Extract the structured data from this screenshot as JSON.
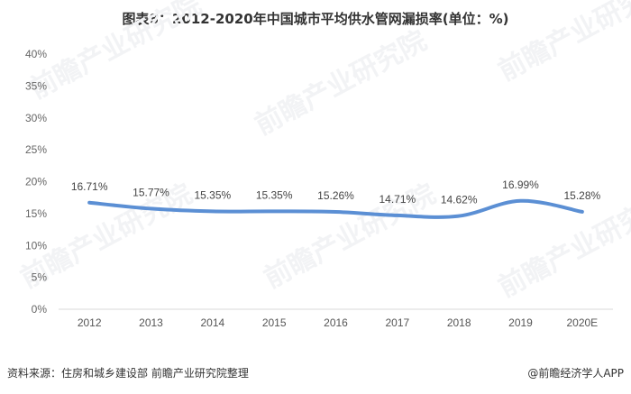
{
  "title": "图表8：2012-2020年中国城市平均供水管网漏损率(单位：%)",
  "chart_data": {
    "type": "line",
    "title": "图表8：2012-2020年中国城市平均供水管网漏损率(单位：%)",
    "categories": [
      "2012",
      "2013",
      "2014",
      "2015",
      "2016",
      "2017",
      "2018",
      "2019",
      "2020E"
    ],
    "series": [
      {
        "name": "城市平均供水管网漏损率",
        "values": [
          16.71,
          15.77,
          15.35,
          15.35,
          15.26,
          14.71,
          14.62,
          16.99,
          15.28
        ],
        "labels": [
          "16.71%",
          "15.77%",
          "15.35%",
          "15.35%",
          "15.26%",
          "14.71%",
          "14.62%",
          "16.99%",
          "15.28%"
        ],
        "color": "#5b8fd4"
      }
    ],
    "yticks": [
      "0%",
      "5%",
      "10%",
      "15%",
      "20%",
      "25%",
      "30%",
      "35%",
      "40%"
    ],
    "ylim": [
      0,
      40
    ],
    "xlabel": "",
    "ylabel": "",
    "grid": false,
    "legend": "none",
    "smooth": true
  },
  "watermark": "前瞻产业研究院",
  "footer": {
    "source": "资料来源：住房和城乡建设部 前瞻产业研究院整理",
    "brand": "@前瞻经济学人APP"
  }
}
